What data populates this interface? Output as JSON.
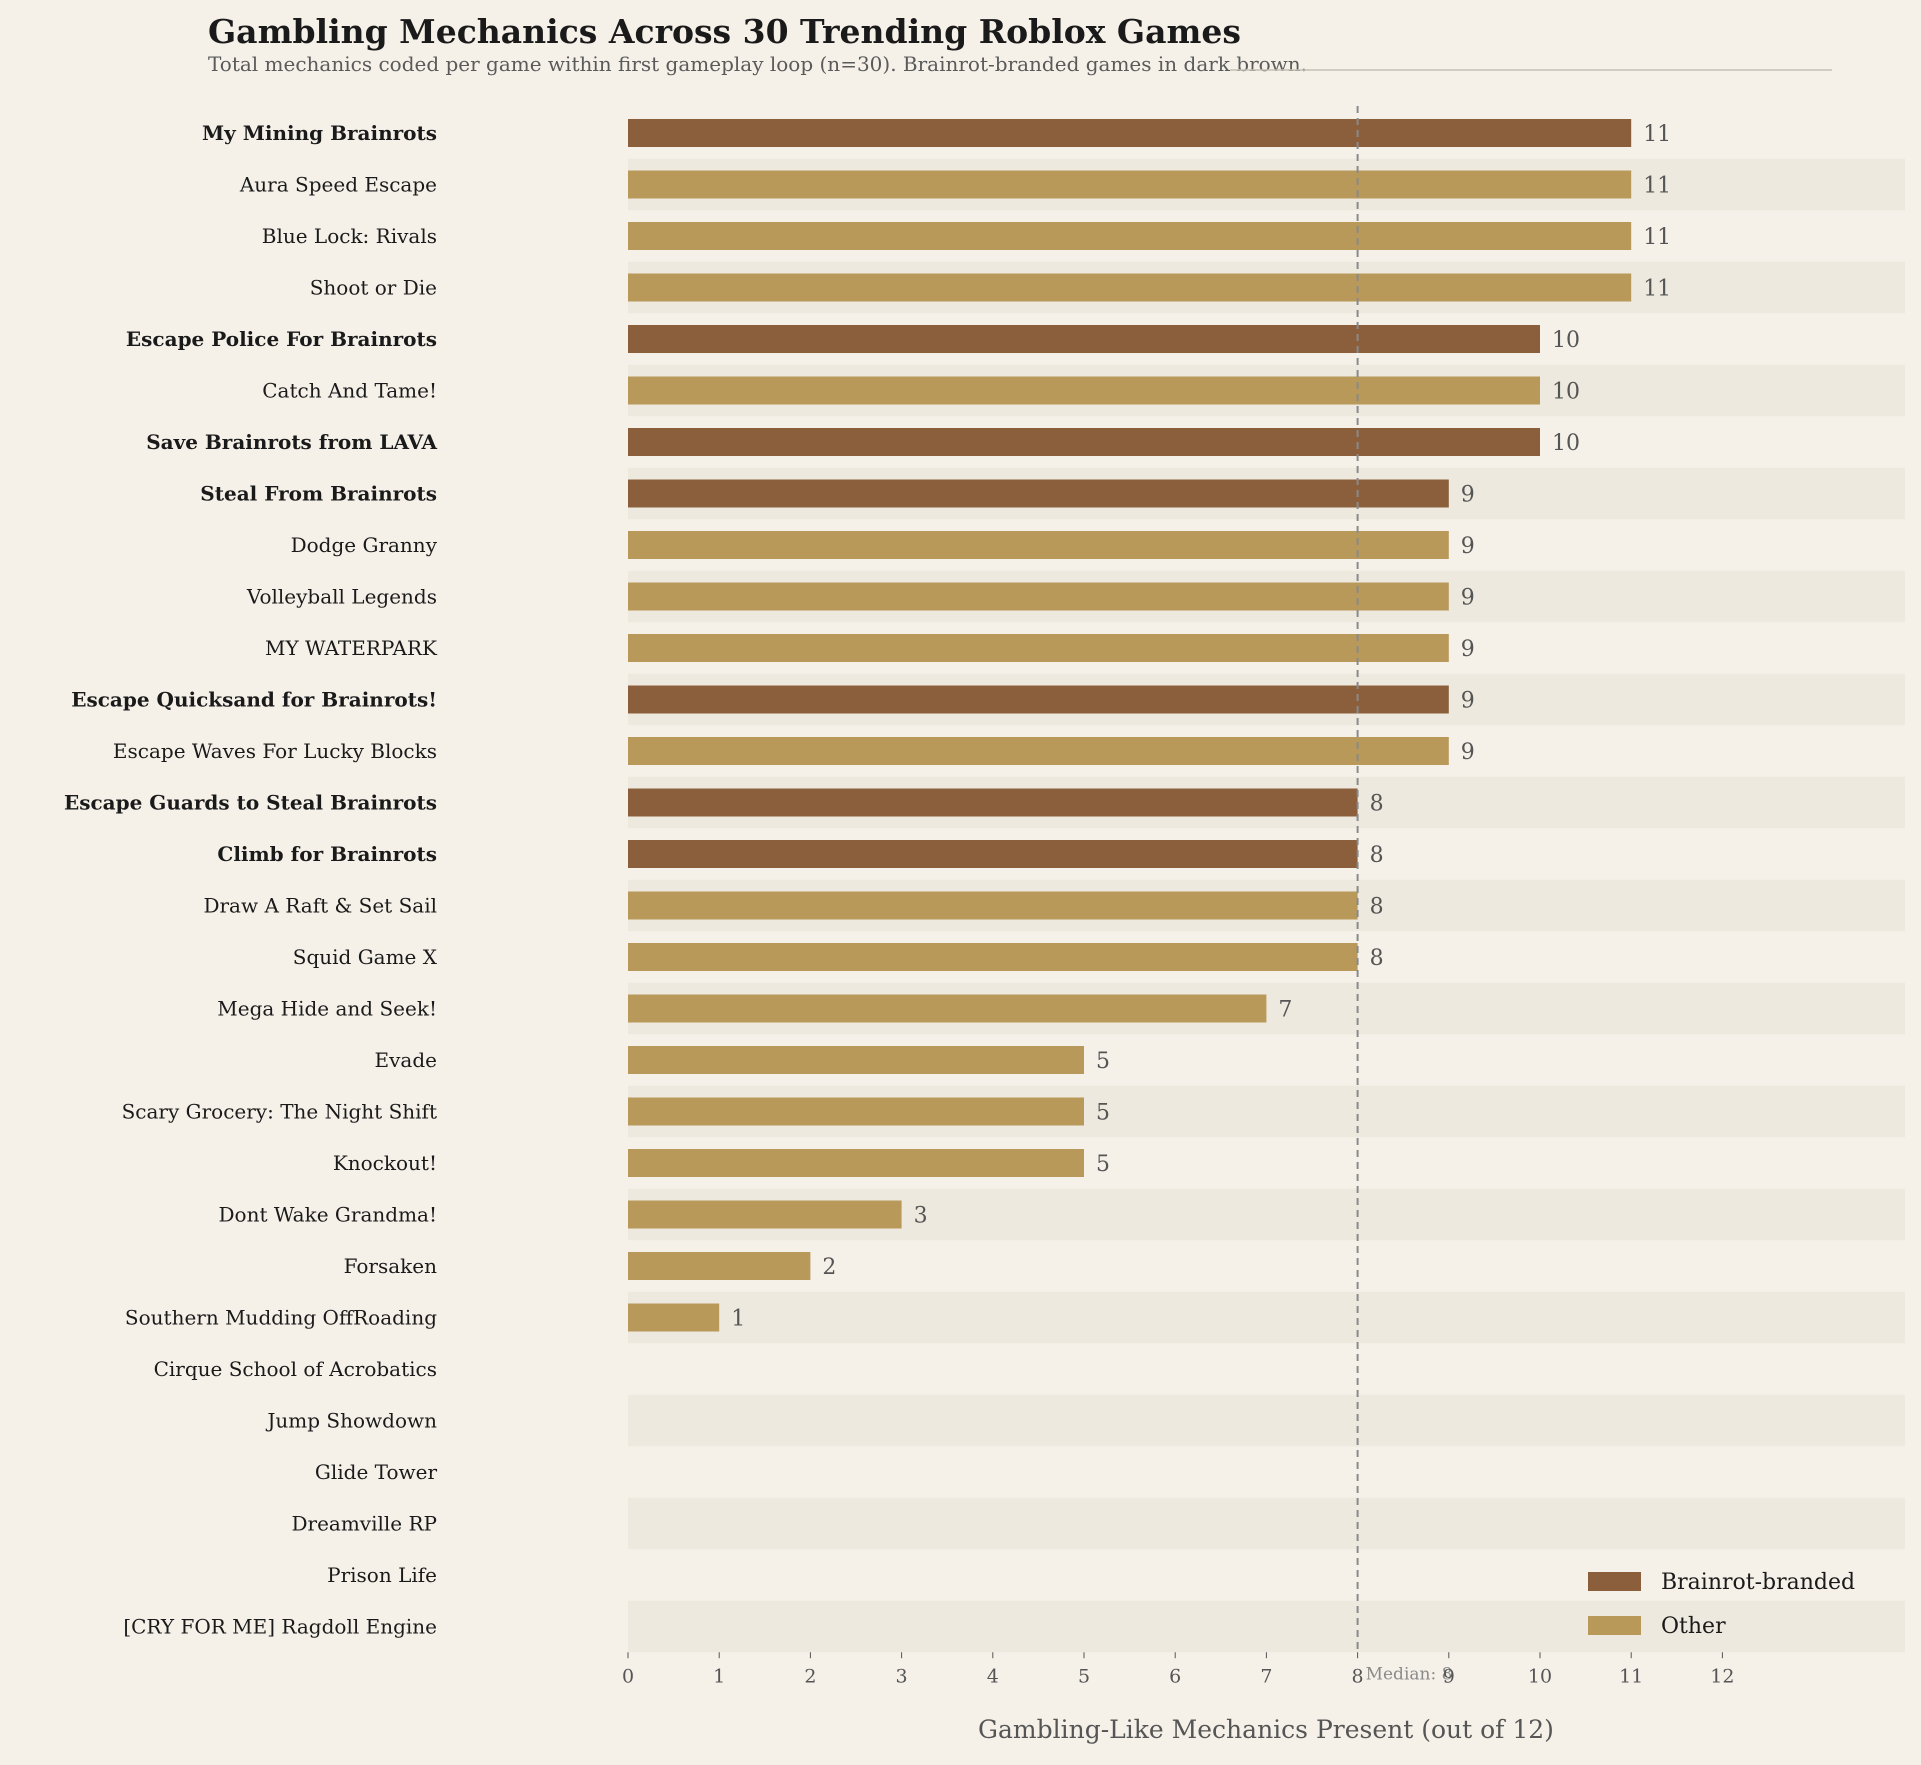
{
  "chart_data": {
    "type": "bar",
    "orientation": "horizontal",
    "title": "Gambling Mechanics Across 30 Trending Roblox Games",
    "subtitle": "Total mechanics coded per game within first gameplay loop (n=30). Brainrot-branded games in dark brown.",
    "xlabel": "Gambling-Like Mechanics Present (out of 12)",
    "xlim": [
      0,
      14
    ],
    "xticks": [
      0,
      1,
      2,
      3,
      4,
      5,
      6,
      7,
      8,
      9,
      10,
      11,
      12
    ],
    "median": {
      "value": 8,
      "label": "Median: 8"
    },
    "legend": {
      "position": "bottom-right",
      "entries": [
        {
          "label": "Brainrot-branded",
          "color": "#8b5e3c"
        },
        {
          "label": "Other",
          "color": "#b8995a"
        }
      ]
    },
    "colors": {
      "brainrot": "#8b5e3c",
      "other": "#b8995a",
      "stripe": "#ede9de",
      "background": "#f5f1e9",
      "median": "#8a8a8a"
    },
    "games": [
      {
        "name": "My Mining Brainrots",
        "value": 11,
        "brainrot": true
      },
      {
        "name": "Aura Speed Escape",
        "value": 11,
        "brainrot": false
      },
      {
        "name": "Blue Lock: Rivals",
        "value": 11,
        "brainrot": false
      },
      {
        "name": "Shoot or Die",
        "value": 11,
        "brainrot": false
      },
      {
        "name": "Escape Police For Brainrots",
        "value": 10,
        "brainrot": true
      },
      {
        "name": "Catch And Tame!",
        "value": 10,
        "brainrot": false
      },
      {
        "name": "Save Brainrots from LAVA",
        "value": 10,
        "brainrot": true
      },
      {
        "name": "Steal From Brainrots",
        "value": 9,
        "brainrot": true
      },
      {
        "name": "Dodge Granny",
        "value": 9,
        "brainrot": false
      },
      {
        "name": "Volleyball Legends",
        "value": 9,
        "brainrot": false
      },
      {
        "name": "MY WATERPARK",
        "value": 9,
        "brainrot": false
      },
      {
        "name": "Escape Quicksand for Brainrots!",
        "value": 9,
        "brainrot": true
      },
      {
        "name": "Escape Waves For Lucky Blocks",
        "value": 9,
        "brainrot": false
      },
      {
        "name": "Escape Guards to Steal Brainrots",
        "value": 8,
        "brainrot": true
      },
      {
        "name": "Climb for Brainrots",
        "value": 8,
        "brainrot": true
      },
      {
        "name": "Draw A Raft & Set Sail",
        "value": 8,
        "brainrot": false
      },
      {
        "name": "Squid Game X",
        "value": 8,
        "brainrot": false
      },
      {
        "name": "Mega Hide and Seek!",
        "value": 7,
        "brainrot": false
      },
      {
        "name": "Evade",
        "value": 5,
        "brainrot": false
      },
      {
        "name": "Scary Grocery: The Night Shift",
        "value": 5,
        "brainrot": false
      },
      {
        "name": "Knockout!",
        "value": 5,
        "brainrot": false
      },
      {
        "name": "Dont Wake Grandma!",
        "value": 3,
        "brainrot": false
      },
      {
        "name": "Forsaken",
        "value": 2,
        "brainrot": false
      },
      {
        "name": "Southern Mudding OffRoading",
        "value": 1,
        "brainrot": false
      },
      {
        "name": "Cirque School of Acrobatics",
        "value": 0,
        "brainrot": false
      },
      {
        "name": "Jump Showdown",
        "value": 0,
        "brainrot": false
      },
      {
        "name": "Glide Tower",
        "value": 0,
        "brainrot": false
      },
      {
        "name": "Dreamville RP",
        "value": 0,
        "brainrot": false
      },
      {
        "name": "Prison Life",
        "value": 0,
        "brainrot": false
      },
      {
        "name": "[CRY FOR ME] Ragdoll Engine",
        "value": 0,
        "brainrot": false
      }
    ]
  }
}
